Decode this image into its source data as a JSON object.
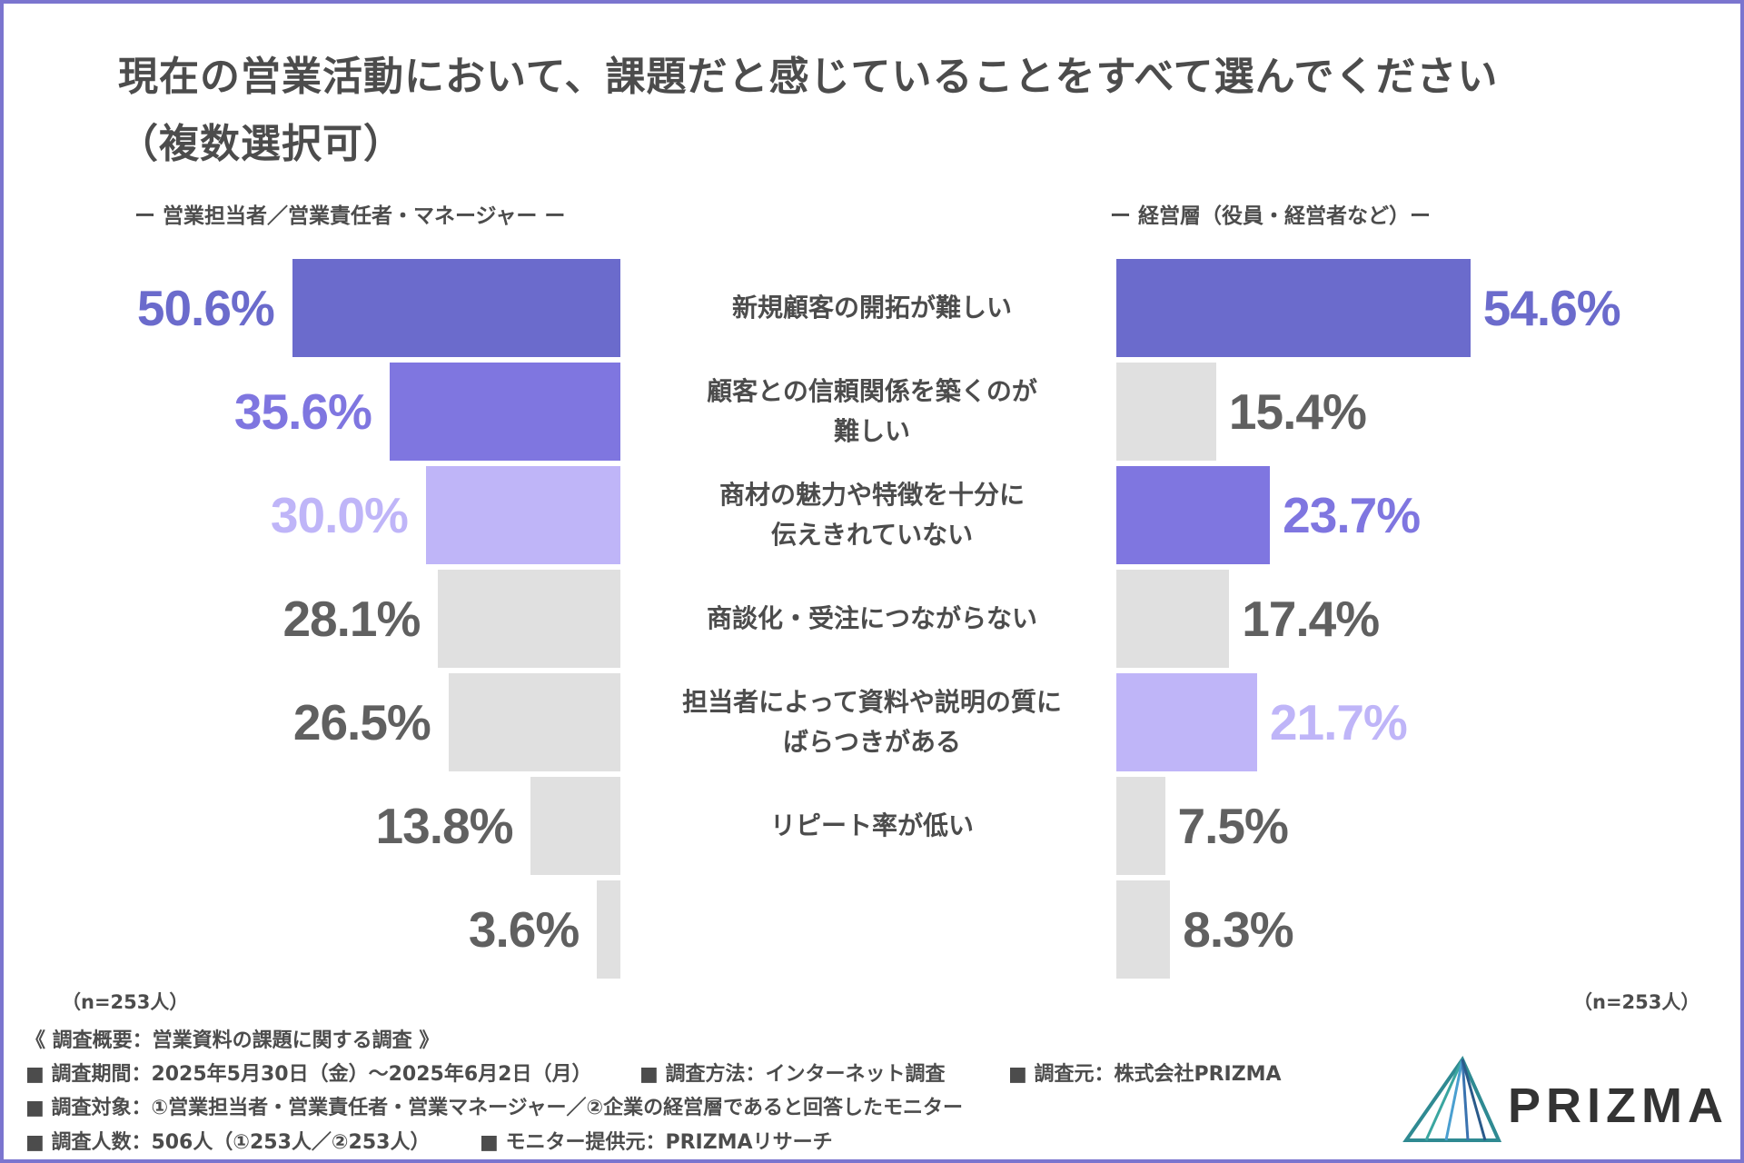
{
  "title_line1": "現在の営業活動において、課題だと感じていることをすべて選んでください",
  "title_line2": "（複数選択可）",
  "left_group_label": "ー 営業担当者／営業責任者・マネージャー ー",
  "right_group_label": "ー 経営層（役員・経営者など）ー",
  "n_left": "（n=253人）",
  "n_right": "（n=253人）",
  "colors": {
    "rank1": "#6b6bcc",
    "rank2": "#7f76e0",
    "rank3": "#bfb5f8",
    "other": "#e0e0e0",
    "other_text": "#606060",
    "frame": "#7b75cf"
  },
  "chart_data": {
    "type": "bar",
    "orientation": "horizontal-mirrored",
    "title": "現在の営業活動において、課題だと感じていることをすべて選んでください（複数選択可）",
    "unit": "%",
    "categories": [
      {
        "lines": [
          "新規顧客の開拓が難しい"
        ]
      },
      {
        "lines": [
          "顧客との信頼関係を築くのが",
          "難しい"
        ]
      },
      {
        "lines": [
          "商材の魅力や特徴を十分に",
          "伝えきれていない"
        ]
      },
      {
        "lines": [
          "商談化・受注につながらない"
        ]
      },
      {
        "lines": [
          "担当者によって資料や説明の質に",
          "ばらつきがある"
        ]
      },
      {
        "lines": [
          "リピート率が低い"
        ]
      },
      {
        "lines": [
          ""
        ]
      }
    ],
    "series": [
      {
        "name": "営業担当者／営業責任者・マネージャー",
        "n": 253,
        "values": [
          50.6,
          35.6,
          30.0,
          28.1,
          26.5,
          13.8,
          3.6
        ],
        "labels": [
          "50.6%",
          "35.6%",
          "30.0%",
          "28.1%",
          "26.5%",
          "13.8%",
          "3.6%"
        ],
        "highlight_rank": [
          1,
          2,
          3,
          0,
          0,
          0,
          0
        ]
      },
      {
        "name": "経営層（役員・経営者など）",
        "n": 253,
        "values": [
          54.6,
          15.4,
          23.7,
          17.4,
          21.7,
          7.5,
          8.3
        ],
        "labels": [
          "54.6%",
          "15.4%",
          "23.7%",
          "17.4%",
          "21.7%",
          "7.5%",
          "8.3%"
        ],
        "highlight_rank": [
          1,
          0,
          2,
          0,
          3,
          0,
          0
        ]
      }
    ],
    "xlim": [
      0,
      60
    ]
  },
  "notes": {
    "heading": "《 調査概要：営業資料の課題に関する調査 》",
    "period": "■ 調査期間：2025年5月30日（金）〜2025年6月2日（月）",
    "method": "■ 調査方法：インターネット調査",
    "organizer": "■ 調査元：株式会社PRIZMA",
    "target": "■ 調査対象：①営業担当者・営業責任者・営業マネージャー／②企業の経営層であると回答したモニター",
    "count": "■ 調査人数：506人（①253人／②253人）",
    "provider": "■ モニター提供元：PRIZMAリサーチ"
  },
  "logo": {
    "text": "PRIZMA"
  }
}
